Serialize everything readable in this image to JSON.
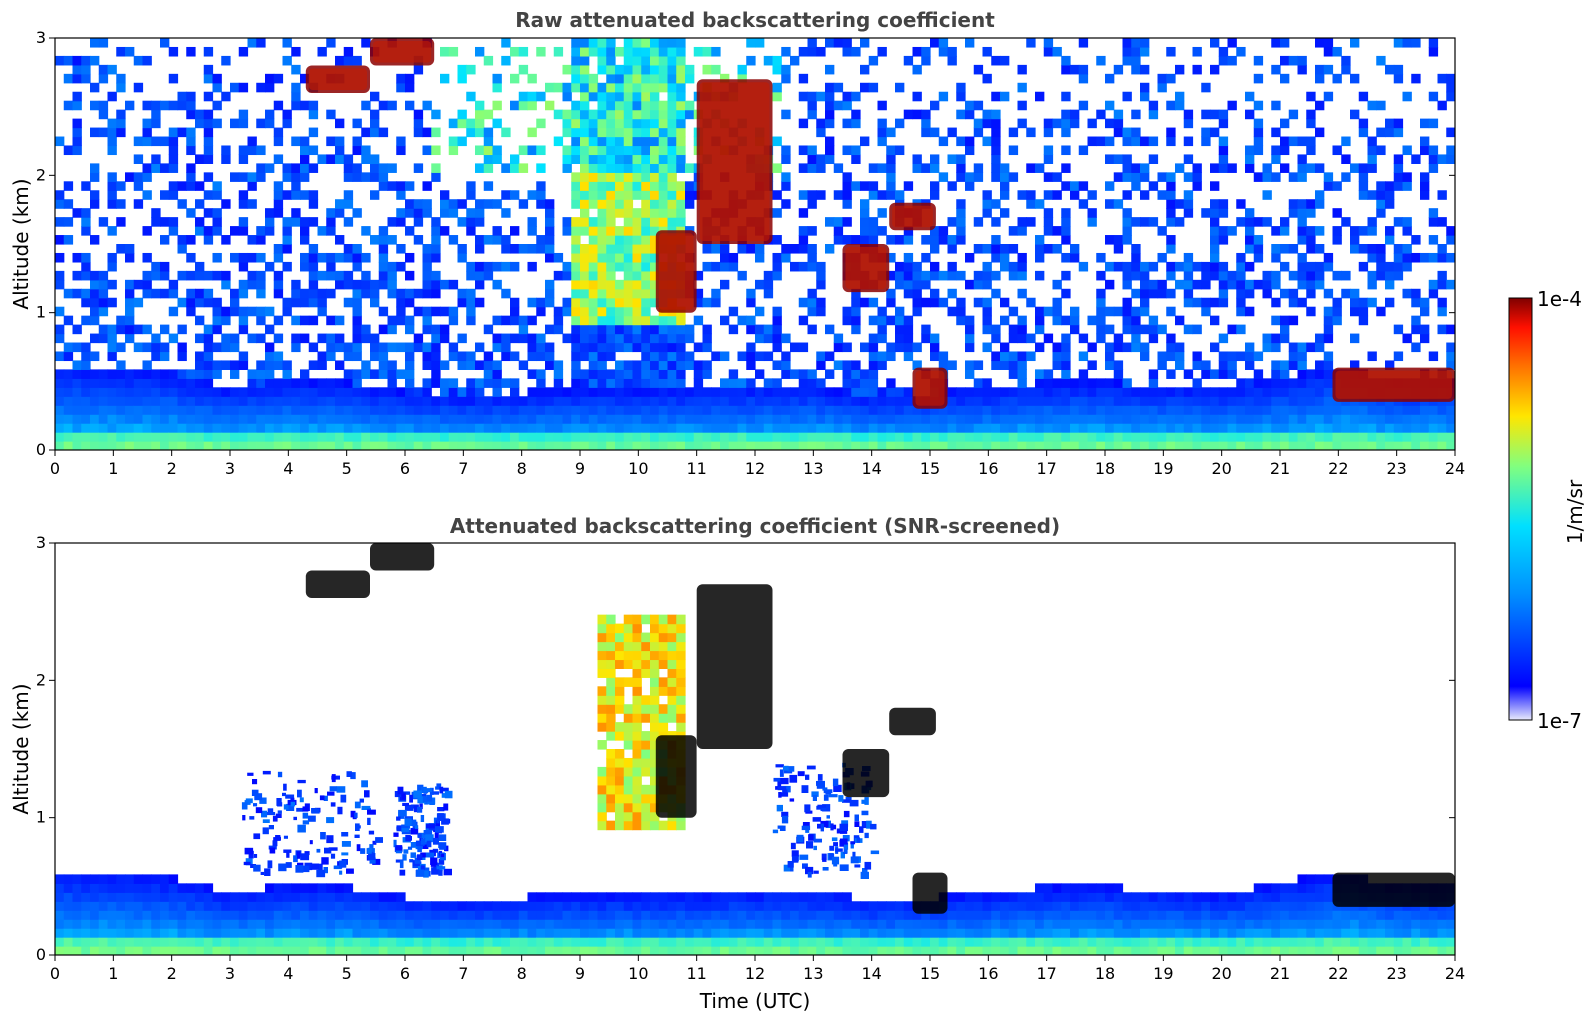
{
  "colors": {
    "jet": [
      "#00007f",
      "#0000ff",
      "#0080ff",
      "#00e5ff",
      "#7fff80",
      "#ffe600",
      "#ff8000",
      "#ff1500",
      "#7f0000"
    ],
    "low_end": "#e8eafc",
    "saturated": "#000000",
    "background": "#ffffff"
  },
  "chart_data": [
    {
      "type": "heatmap",
      "title": "Raw attenuated backscattering coefficient",
      "xlabel": "",
      "ylabel": "Altitude (km)",
      "xlim": [
        0,
        24
      ],
      "ylim": [
        0,
        3
      ],
      "xticks": [
        "0",
        "1",
        "2",
        "3",
        "4",
        "5",
        "6",
        "7",
        "8",
        "9",
        "10",
        "11",
        "12",
        "13",
        "14",
        "15",
        "16",
        "17",
        "18",
        "19",
        "20",
        "21",
        "22",
        "23",
        "24"
      ],
      "yticks": [
        "0",
        "1",
        "2",
        "3"
      ],
      "colorbar": {
        "label": "1/m/sr",
        "min_label": "1e-7",
        "max_label": "1e-4",
        "scale": "log",
        "colormap": "jet"
      },
      "features": {
        "boundary_layer_top_km": [
          [
            0,
            0.62
          ],
          [
            1,
            0.6
          ],
          [
            2,
            0.57
          ],
          [
            3,
            0.45
          ],
          [
            4,
            0.52
          ],
          [
            5,
            0.5
          ],
          [
            6,
            0.42
          ],
          [
            7,
            0.4
          ],
          [
            8,
            0.42
          ],
          [
            9,
            0.45
          ],
          [
            10,
            0.45
          ],
          [
            11,
            0.45
          ],
          [
            12,
            0.47
          ],
          [
            13,
            0.47
          ],
          [
            14,
            0.4
          ],
          [
            15,
            0.42
          ],
          [
            16,
            0.45
          ],
          [
            17,
            0.5
          ],
          [
            18,
            0.5
          ],
          [
            19,
            0.47
          ],
          [
            20,
            0.45
          ],
          [
            21,
            0.52
          ],
          [
            22,
            0.62
          ],
          [
            23,
            0.5
          ],
          [
            24,
            0.5
          ]
        ],
        "clouds": [
          {
            "x": [
              4.3,
              5.4
            ],
            "y": [
              2.6,
              2.8
            ]
          },
          {
            "x": [
              5.4,
              6.5
            ],
            "y": [
              2.8,
              3.0
            ]
          },
          {
            "x": [
              10.3,
              11.0
            ],
            "y": [
              1.0,
              1.6
            ]
          },
          {
            "x": [
              11.0,
              12.3
            ],
            "y": [
              1.5,
              2.7
            ]
          },
          {
            "x": [
              13.5,
              14.3
            ],
            "y": [
              1.15,
              1.5
            ]
          },
          {
            "x": [
              14.3,
              15.1
            ],
            "y": [
              1.6,
              1.8
            ]
          },
          {
            "x": [
              14.7,
              15.3
            ],
            "y": [
              0.3,
              0.6
            ]
          },
          {
            "x": [
              21.9,
              24.0
            ],
            "y": [
              0.35,
              0.6
            ]
          }
        ],
        "aerosol_plume": {
          "x": [
            9.0,
            11.0
          ],
          "y": [
            0.9,
            3.0
          ]
        }
      }
    },
    {
      "type": "heatmap",
      "title": "Attenuated backscattering coefficient (SNR-screened)",
      "xlabel": "Time (UTC)",
      "ylabel": "Altitude (km)",
      "xlim": [
        0,
        24
      ],
      "ylim": [
        0,
        3
      ],
      "xticks": [
        "0",
        "1",
        "2",
        "3",
        "4",
        "5",
        "6",
        "7",
        "8",
        "9",
        "10",
        "11",
        "12",
        "13",
        "14",
        "15",
        "16",
        "17",
        "18",
        "19",
        "20",
        "21",
        "22",
        "23",
        "24"
      ],
      "yticks": [
        "0",
        "1",
        "2",
        "3"
      ],
      "colorbar": {
        "label": "1/m/sr",
        "min_label": "1e-7",
        "max_label": "1e-4",
        "scale": "log",
        "colormap": "jet"
      },
      "features": {
        "boundary_layer_top_km": [
          [
            0,
            0.62
          ],
          [
            1,
            0.6
          ],
          [
            2,
            0.57
          ],
          [
            3,
            0.45
          ],
          [
            4,
            0.52
          ],
          [
            5,
            0.5
          ],
          [
            6,
            0.42
          ],
          [
            7,
            0.4
          ],
          [
            8,
            0.42
          ],
          [
            9,
            0.45
          ],
          [
            10,
            0.45
          ],
          [
            11,
            0.45
          ],
          [
            12,
            0.47
          ],
          [
            13,
            0.47
          ],
          [
            14,
            0.4
          ],
          [
            15,
            0.42
          ],
          [
            16,
            0.45
          ],
          [
            17,
            0.5
          ],
          [
            18,
            0.5
          ],
          [
            19,
            0.47
          ],
          [
            20,
            0.45
          ],
          [
            21,
            0.52
          ],
          [
            22,
            0.62
          ],
          [
            23,
            0.5
          ],
          [
            24,
            0.5
          ]
        ],
        "screened_regions": [
          {
            "x": [
              3.2,
              5.5
            ],
            "y": [
              0.6,
              1.35
            ]
          },
          {
            "x": [
              5.8,
              6.7
            ],
            "y": [
              0.6,
              1.25
            ]
          },
          {
            "x": [
              12.3,
              14.0
            ],
            "y": [
              0.6,
              1.4
            ]
          }
        ],
        "aerosol_plume": {
          "x": [
            9.3,
            11.0
          ],
          "y": [
            0.9,
            2.5
          ]
        }
      }
    }
  ]
}
